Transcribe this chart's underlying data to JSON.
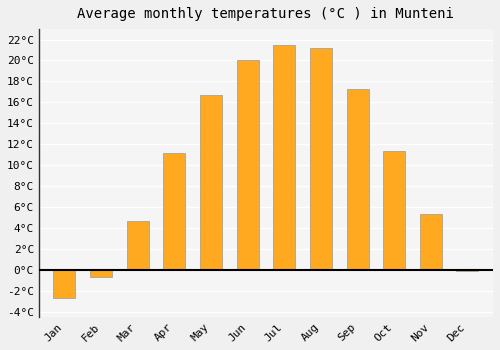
{
  "title": "Average monthly temperatures (°C ) in Munteni",
  "months": [
    "Jan",
    "Feb",
    "Mar",
    "Apr",
    "May",
    "Jun",
    "Jul",
    "Aug",
    "Sep",
    "Oct",
    "Nov",
    "Dec"
  ],
  "values": [
    -2.7,
    -0.7,
    4.7,
    11.2,
    16.7,
    20.0,
    21.5,
    21.2,
    17.3,
    11.3,
    5.3,
    -0.1
  ],
  "bar_color": "#FFA920",
  "bar_edge_color": "#999999",
  "plot_bg_color": "#f5f5f5",
  "fig_bg_color": "#f0f0f0",
  "ylim": [
    -4.5,
    23
  ],
  "yticks": [
    -4,
    -2,
    0,
    2,
    4,
    6,
    8,
    10,
    12,
    14,
    16,
    18,
    20,
    22
  ],
  "ytick_labels": [
    "-4°C",
    "-2°C",
    "0°C",
    "2°C",
    "4°C",
    "6°C",
    "8°C",
    "10°C",
    "12°C",
    "14°C",
    "16°C",
    "18°C",
    "20°C",
    "22°C"
  ],
  "grid_color": "#ffffff",
  "zero_line_color": "#000000",
  "left_spine_color": "#333333",
  "title_fontsize": 10,
  "tick_fontsize": 8
}
